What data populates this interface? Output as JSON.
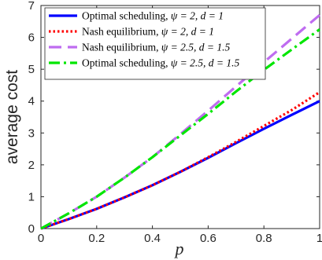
{
  "chart_data": {
    "type": "line",
    "xlabel": "p",
    "ylabel": "average cost",
    "xlim": [
      0,
      1
    ],
    "ylim": [
      0,
      7
    ],
    "xticks": [
      "0",
      "0.2",
      "0.4",
      "0.6",
      "0.8",
      "1"
    ],
    "yticks": [
      "0",
      "1",
      "2",
      "3",
      "4",
      "5",
      "6",
      "7"
    ],
    "legend_position": "top-left",
    "grid": false,
    "x": [
      0,
      0.1,
      0.2,
      0.3,
      0.4,
      0.5,
      0.6,
      0.7,
      0.8,
      0.9,
      1.0
    ],
    "series": [
      {
        "name": "Optimal scheduling, ψ = 2, d = 1",
        "legend_prefix": "Optimal scheduling, ",
        "legend_math": "ψ = 2, d = 1",
        "color": "#0000ff",
        "style": "solid",
        "values": [
          0,
          0.3,
          0.62,
          0.98,
          1.36,
          1.78,
          2.22,
          2.68,
          3.13,
          3.57,
          4.0
        ]
      },
      {
        "name": "Nash equilibrium, ψ = 2, d = 1",
        "legend_prefix": "Nash equilibrium, ",
        "legend_math": "ψ = 2, d = 1",
        "color": "#ff0000",
        "style": "dotted",
        "values": [
          0,
          0.3,
          0.62,
          0.98,
          1.36,
          1.78,
          2.24,
          2.72,
          3.22,
          3.72,
          4.28
        ]
      },
      {
        "name": "Nash equilibrium, ψ = 2.5, d = 1.5",
        "legend_prefix": "Nash equilibrium, ",
        "legend_math": "ψ = 2.5, d = 1.5",
        "color": "#bf6cf0",
        "style": "dashed",
        "values": [
          0,
          0.48,
          1.0,
          1.6,
          2.24,
          2.96,
          3.7,
          4.46,
          5.22,
          5.96,
          6.7
        ]
      },
      {
        "name": "Optimal scheduling, ψ = 2.5, d = 1.5",
        "legend_prefix": "Optimal scheduling, ",
        "legend_math": "ψ = 2.5, d = 1.5",
        "color": "#00e600",
        "style": "dashdot",
        "values": [
          0,
          0.48,
          1.0,
          1.6,
          2.24,
          2.92,
          3.6,
          4.3,
          4.98,
          5.62,
          6.25
        ]
      }
    ]
  }
}
